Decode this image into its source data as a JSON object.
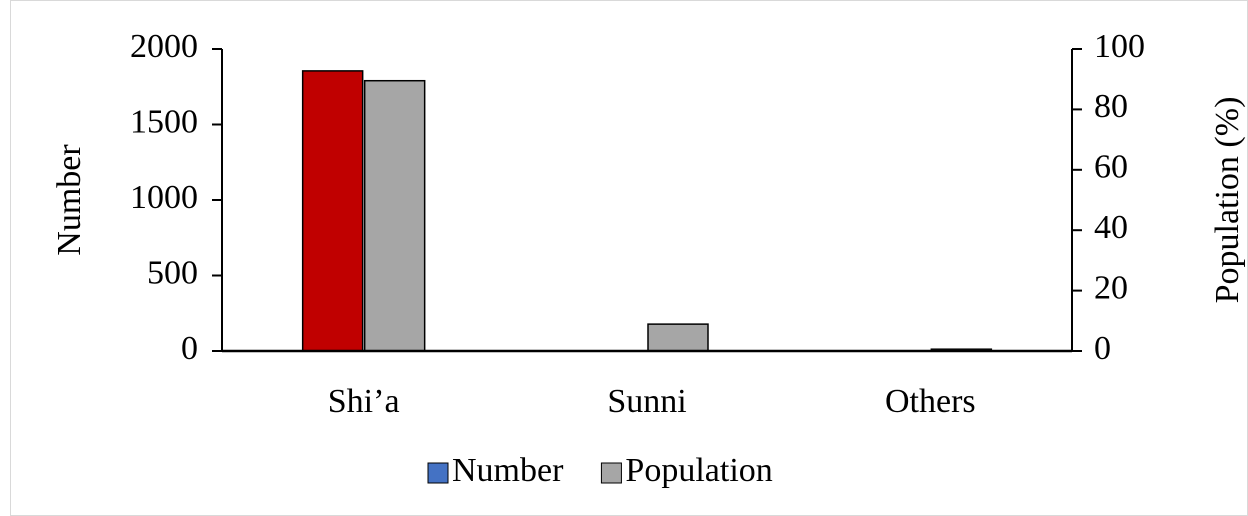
{
  "chart_data": {
    "type": "bar",
    "categories": [
      "Shi’a",
      "Sunni",
      "Others"
    ],
    "series": [
      {
        "name": "Number",
        "color": "#4472c4",
        "point_colors": [
          "#c00000",
          "#4472c4",
          "#4472c4"
        ],
        "values": [
          1855,
          null,
          null
        ]
      },
      {
        "name": "Population",
        "color": "#a6a6a6",
        "axis": "y2",
        "values": [
          89.5,
          8.9,
          0.6
        ]
      }
    ],
    "ylabel": "Number",
    "y2label": "Population (%)",
    "ylim": [
      0,
      2000
    ],
    "yticks": [
      0,
      500,
      1000,
      1500,
      2000
    ],
    "y2lim": [
      0,
      100
    ],
    "y2ticks": [
      0,
      20,
      40,
      60,
      80,
      100
    ],
    "legend": "bottom",
    "grid": false
  }
}
